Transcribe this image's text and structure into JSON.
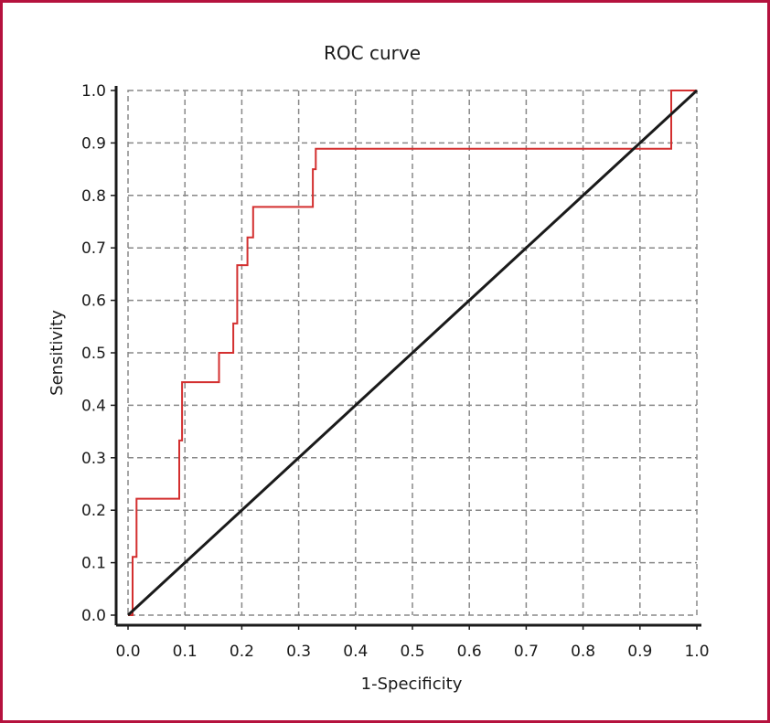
{
  "chart_data": {
    "type": "line",
    "title": "ROC curve",
    "xlabel": "1-Specificity",
    "ylabel": "Sensitivity",
    "xlim": [
      0,
      1
    ],
    "ylim": [
      0,
      1
    ],
    "grid": true,
    "x_ticks": [
      "0.0",
      "0.1",
      "0.2",
      "0.3",
      "0.4",
      "0.5",
      "0.6",
      "0.7",
      "0.8",
      "0.9",
      "1.0"
    ],
    "y_ticks": [
      "0.0",
      "0.1",
      "0.2",
      "0.3",
      "0.4",
      "0.5",
      "0.6",
      "0.7",
      "0.8",
      "0.9",
      "1.0"
    ],
    "colors": {
      "roc": "#d32f2f",
      "reference": "#1a1a1a",
      "frame": "#b5123e",
      "grid": "#888888"
    },
    "series": [
      {
        "type": "step",
        "x": [
          0.0,
          0.008,
          0.008,
          0.015,
          0.015,
          0.09,
          0.09,
          0.095,
          0.095,
          0.16,
          0.16,
          0.185,
          0.185,
          0.192,
          0.192,
          0.21,
          0.21,
          0.22,
          0.22,
          0.325,
          0.325,
          0.33,
          0.33,
          0.955,
          0.955,
          1.0
        ],
        "y": [
          0.0,
          0.0,
          0.111,
          0.111,
          0.222,
          0.222,
          0.333,
          0.333,
          0.444,
          0.444,
          0.5,
          0.5,
          0.556,
          0.556,
          0.667,
          0.667,
          0.72,
          0.72,
          0.778,
          0.778,
          0.85,
          0.85,
          0.889,
          0.889,
          1.0,
          1.0
        ]
      },
      {
        "type": "reference",
        "x": [
          0,
          1
        ],
        "y": [
          0,
          1
        ]
      }
    ]
  }
}
